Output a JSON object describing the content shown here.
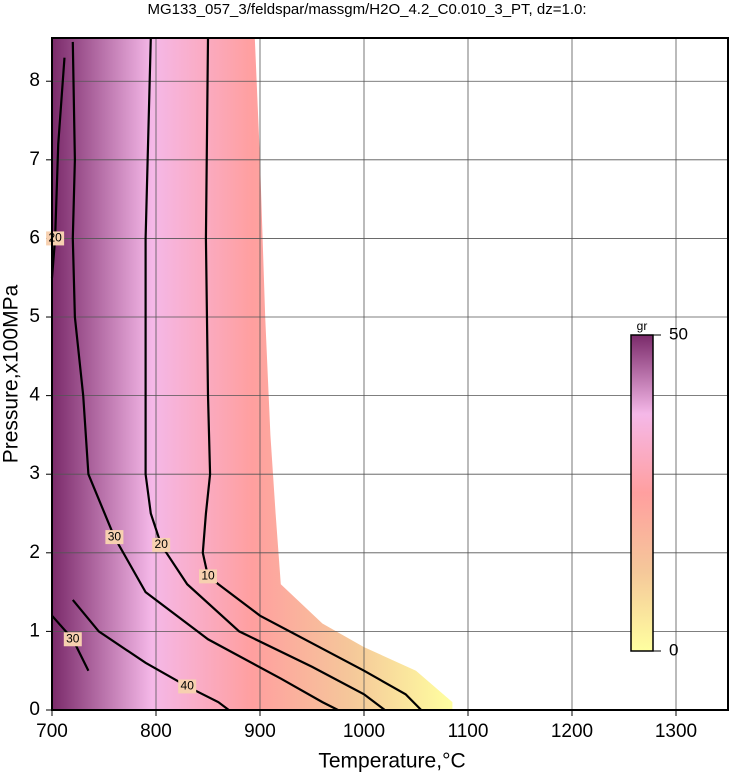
{
  "chart_data": {
    "type": "contour",
    "title": "MG133_057_3/feldspar/massgm/H2O_4.2_C0.010_3_PT, dz=1.0:",
    "x_label": "Temperature,°C",
    "y_label": "Pressure,x100MPa",
    "xlim": [
      700,
      1350
    ],
    "ylim": [
      0,
      8.55
    ],
    "xticks": [
      700,
      800,
      900,
      1000,
      1100,
      1200,
      1300
    ],
    "yticks": [
      0,
      1,
      2,
      3,
      4,
      5,
      6,
      7,
      8
    ],
    "grid": true,
    "field_boundary": {
      "x": [
        895,
        900,
        905,
        910,
        915,
        920,
        960,
        1000,
        1050,
        1085,
        1085
      ],
      "y": [
        8.55,
        7,
        5,
        3.5,
        2.5,
        1.6,
        1.1,
        0.8,
        0.5,
        0.1,
        0
      ]
    },
    "contours": [
      {
        "level": 10,
        "x": [
          850,
          848,
          850,
          852,
          848,
          845,
          850,
          900,
          950,
          1000,
          1040,
          1055
        ],
        "y": [
          8.55,
          6,
          4,
          3.0,
          2.5,
          2.0,
          1.7,
          1.2,
          0.85,
          0.5,
          0.2,
          0
        ]
      },
      {
        "level": 20,
        "x": [
          795,
          790,
          790,
          790,
          795,
          805,
          830,
          880,
          950,
          1000,
          1020
        ],
        "y": [
          8.55,
          6,
          4,
          3.0,
          2.5,
          2.1,
          1.6,
          1.0,
          0.55,
          0.2,
          0
        ]
      },
      {
        "level": 30,
        "x": [
          720,
          722,
          720,
          722,
          730,
          735,
          760,
          790,
          850,
          920,
          960,
          975
        ],
        "y": [
          8.5,
          7,
          6,
          5,
          4,
          3,
          2.2,
          1.5,
          0.9,
          0.4,
          0.1,
          0
        ]
      },
      {
        "level": 20,
        "x": [
          712,
          706,
          703,
          700
        ],
        "y": [
          8.3,
          7.2,
          6.0,
          5.5
        ]
      },
      {
        "level": 40,
        "x": [
          720,
          745,
          790,
          830,
          860,
          870
        ],
        "y": [
          1.4,
          1.0,
          0.6,
          0.3,
          0.1,
          0
        ]
      },
      {
        "level": 30,
        "x": [
          700,
          720,
          735
        ],
        "y": [
          1.2,
          0.9,
          0.5
        ]
      }
    ],
    "colorbar": {
      "label": "gr",
      "clim": [
        0,
        50
      ],
      "ticks": [
        0,
        50
      ]
    },
    "colormap": [
      "#ffffa0",
      "#f5c89a",
      "#ff9f9f",
      "#f5b8e8",
      "#7a2a6a"
    ]
  }
}
